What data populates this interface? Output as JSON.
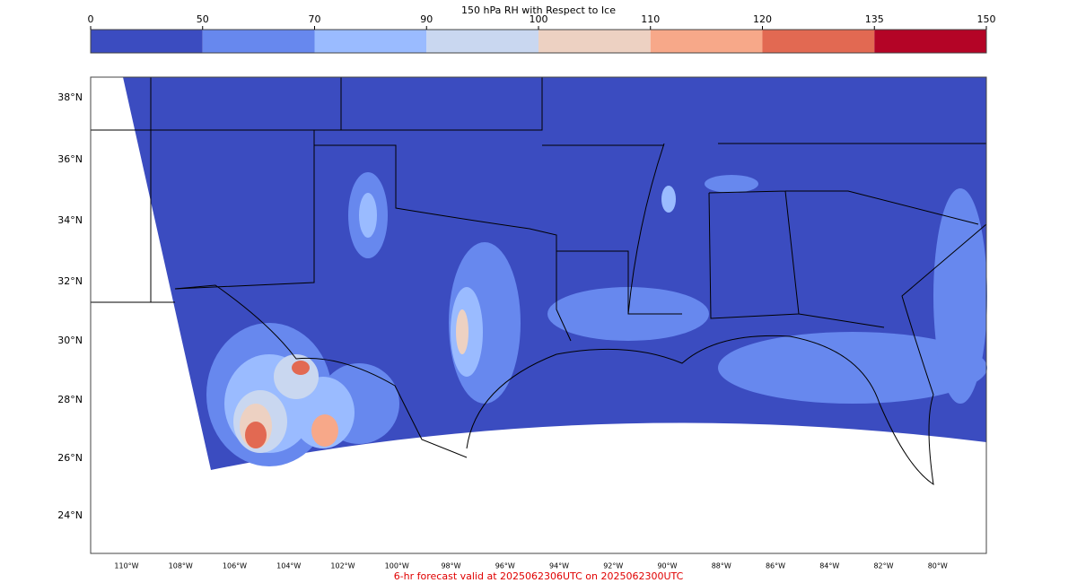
{
  "colorbar": {
    "title": "150 hPa RH with Respect to Ice",
    "levels": [
      0,
      50,
      70,
      90,
      100,
      110,
      120,
      135,
      150
    ],
    "colors": [
      "#3b4cc0",
      "#6788ee",
      "#9abbff",
      "#c9d7f0",
      "#edd1c2",
      "#f7a889",
      "#e26952",
      "#b40426"
    ]
  },
  "lat_labels": [
    "38°N",
    "36°N",
    "34°N",
    "32°N",
    "30°N",
    "28°N",
    "26°N",
    "24°N"
  ],
  "lon_labels": [
    "110°W",
    "108°W",
    "106°W",
    "104°W",
    "102°W",
    "100°W",
    "98°W",
    "96°W",
    "94°W",
    "92°W",
    "90°W",
    "88°W",
    "86°W",
    "84°W",
    "82°W",
    "80°W"
  ],
  "footer": "6-hr forecast valid at 2025062306UTC on 2025062300UTC"
}
